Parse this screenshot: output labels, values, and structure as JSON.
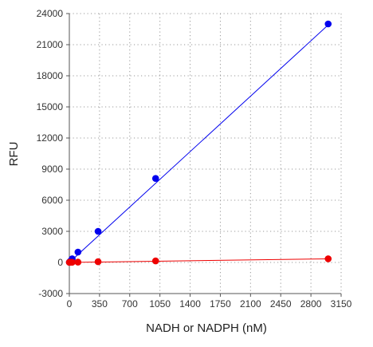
{
  "chart_data": {
    "type": "scatter",
    "title": "",
    "xlabel": "NADH or NADPH (nM)",
    "ylabel": "RFU",
    "xlim": [
      0,
      3150
    ],
    "ylim": [
      -3000,
      24000
    ],
    "xticks": [
      0,
      350,
      700,
      1050,
      1400,
      1750,
      2100,
      2450,
      2800,
      3150
    ],
    "yticks": [
      -3000,
      0,
      3000,
      6000,
      9000,
      12000,
      15000,
      18000,
      21000,
      24000
    ],
    "grid": true,
    "legend": "none",
    "series": [
      {
        "color": "#0000ee",
        "x": [
          0,
          3.7,
          11,
          33,
          100,
          333,
          1000,
          3000
        ],
        "y": [
          20,
          40,
          120,
          350,
          1000,
          3000,
          8100,
          23000
        ],
        "fit_line": [
          [
            0,
            0
          ],
          [
            3000,
            22900
          ]
        ]
      },
      {
        "color": "#ee0000",
        "x": [
          0,
          3.7,
          11,
          33,
          100,
          333,
          1000,
          3000
        ],
        "y": [
          10,
          12,
          14,
          18,
          30,
          70,
          150,
          350
        ],
        "fit_line": [
          [
            0,
            0
          ],
          [
            3000,
            350
          ]
        ]
      }
    ]
  }
}
